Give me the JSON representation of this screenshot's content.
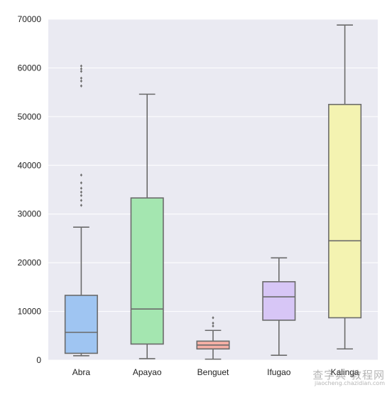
{
  "chart_data": {
    "type": "boxplot",
    "title": "",
    "xlabel": "",
    "ylabel": "",
    "ylim": [
      0,
      70000
    ],
    "yticks": [
      0,
      10000,
      20000,
      30000,
      40000,
      50000,
      60000,
      70000
    ],
    "grid": true,
    "legend": "none",
    "background": "#EAEAF2",
    "categories": [
      "Abra",
      "Apayao",
      "Benguet",
      "Ifugao",
      "Kalinga"
    ],
    "boxes": [
      {
        "name": "Abra",
        "color": "#9FC5F2",
        "whisker_low": 900,
        "q1": 1400,
        "median": 5700,
        "q3": 13300,
        "whisker_high": 27300,
        "outliers": [
          31800,
          32800,
          33800,
          34500,
          35300,
          36400,
          38000,
          56300,
          57300,
          57900,
          59300,
          59800,
          60400
        ]
      },
      {
        "name": "Apayao",
        "color": "#A4E6B0",
        "whisker_low": 300,
        "q1": 3300,
        "median": 10500,
        "q3": 33300,
        "whisker_high": 54600,
        "outliers": []
      },
      {
        "name": "Benguet",
        "color": "#F5AFA5",
        "whisker_low": 200,
        "q1": 2300,
        "median": 3100,
        "q3": 3900,
        "whisker_high": 6100,
        "outliers": [
          7000,
          7600,
          8700
        ]
      },
      {
        "name": "Ifugao",
        "color": "#D7C6F6",
        "whisker_low": 1000,
        "q1": 8200,
        "median": 13000,
        "q3": 16100,
        "whisker_high": 21000,
        "outliers": []
      },
      {
        "name": "Kalinga",
        "color": "#F4F3B1",
        "whisker_low": 2300,
        "q1": 8700,
        "median": 24500,
        "q3": 52500,
        "whisker_high": 68800,
        "outliers": []
      }
    ]
  },
  "watermark": {
    "main": "查字典 教程网",
    "sub": "jiaocheng.chazidian.com"
  }
}
